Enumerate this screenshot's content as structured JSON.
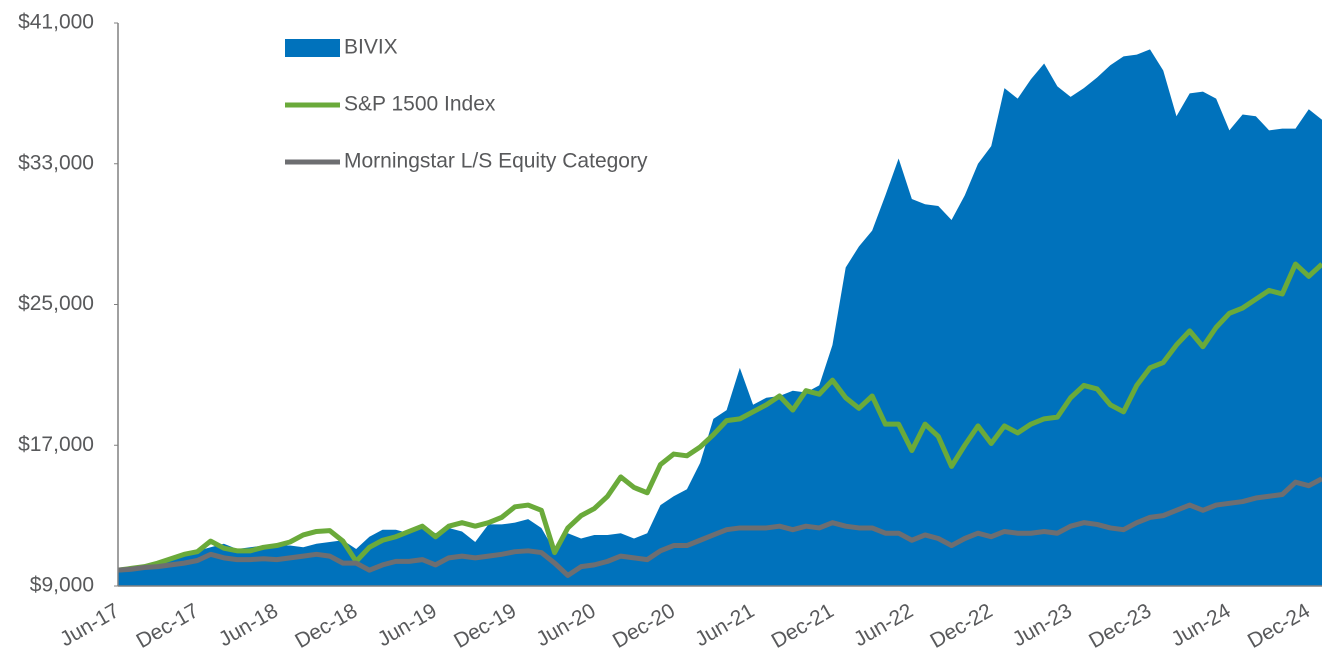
{
  "chart_data": {
    "type": "line",
    "categories": [
      "Jun-17",
      null,
      null,
      null,
      null,
      null,
      "Dec-17",
      null,
      null,
      null,
      null,
      null,
      "Jun-18",
      null,
      null,
      null,
      null,
      null,
      "Dec-18",
      null,
      null,
      null,
      null,
      null,
      "Jun-19",
      null,
      null,
      null,
      null,
      null,
      "Dec-19",
      null,
      null,
      null,
      null,
      null,
      "Jun-20",
      null,
      null,
      null,
      null,
      null,
      "Dec-20",
      null,
      null,
      null,
      null,
      null,
      "Jun-21",
      null,
      null,
      null,
      null,
      null,
      "Dec-21",
      null,
      null,
      null,
      null,
      null,
      "Jun-22",
      null,
      null,
      null,
      null,
      null,
      "Dec-22",
      null,
      null,
      null,
      null,
      null,
      "Jun-23",
      null,
      null,
      null,
      null,
      null,
      "Dec-23",
      null,
      null,
      null,
      null,
      null,
      "Jun-24",
      null,
      null,
      null,
      null,
      null,
      "Dec-24",
      null
    ],
    "series": [
      {
        "name": "BIVIX",
        "type": "area",
        "color": "#0072bc",
        "values": [
          9900,
          10100,
          10200,
          10400,
          10600,
          10800,
          11000,
          11200,
          11400,
          11100,
          11200,
          11300,
          11300,
          11300,
          11200,
          11400,
          11500,
          11600,
          11100,
          11800,
          12200,
          12200,
          12000,
          12400,
          12000,
          12300,
          12100,
          11500,
          12500,
          12500,
          12600,
          12800,
          12300,
          11000,
          12000,
          11700,
          11900,
          11900,
          12000,
          11700,
          12000,
          13600,
          14100,
          14500,
          16000,
          18500,
          19000,
          21400,
          19300,
          19700,
          19800,
          20100,
          20000,
          20400,
          22700,
          27100,
          28300,
          29200,
          31200,
          33300,
          31000,
          30700,
          30600,
          29800,
          31200,
          33000,
          34000,
          37300,
          36700,
          37800,
          38700,
          37400,
          36800,
          37300,
          37900,
          38600,
          39100,
          39200,
          39500,
          38300,
          35700,
          37000,
          37100,
          36700,
          34900,
          35800,
          35700,
          34900,
          35000,
          35000,
          36100,
          35500
        ]
      },
      {
        "name": "S&P 1500 Index",
        "type": "line",
        "color": "#6aaa3a",
        "values": [
          9900,
          10000,
          10100,
          10300,
          10550,
          10800,
          10950,
          11550,
          11150,
          11000,
          11000,
          11200,
          11300,
          11500,
          11900,
          12100,
          12150,
          11550,
          10400,
          11200,
          11600,
          11800,
          12100,
          12400,
          11800,
          12400,
          12600,
          12400,
          12600,
          12900,
          13500,
          13600,
          13300,
          10900,
          12300,
          13000,
          13400,
          14100,
          15200,
          14600,
          14300,
          15900,
          16500,
          16400,
          16900,
          17600,
          18400,
          18500,
          18900,
          19300,
          19800,
          19000,
          20100,
          19900,
          20700,
          19700,
          19100,
          19800,
          18200,
          18200,
          16700,
          18200,
          17500,
          15800,
          17000,
          18100,
          17100,
          18100,
          17700,
          18200,
          18500,
          18600,
          19700,
          20400,
          20200,
          19300,
          18900,
          20400,
          21400,
          21700,
          22700,
          23500,
          22600,
          23700,
          24500,
          24800,
          25300,
          25800,
          25600,
          27300,
          26600,
          27300
        ]
      },
      {
        "name": "Morningstar L/S Equity Category",
        "type": "line",
        "color": "#6d6e71",
        "values": [
          9900,
          9950,
          10050,
          10100,
          10200,
          10300,
          10450,
          10800,
          10600,
          10500,
          10500,
          10550,
          10500,
          10600,
          10700,
          10800,
          10700,
          10300,
          10300,
          9900,
          10200,
          10400,
          10400,
          10500,
          10200,
          10600,
          10700,
          10600,
          10700,
          10800,
          10950,
          11000,
          10900,
          10300,
          9600,
          10100,
          10200,
          10400,
          10700,
          10600,
          10500,
          11000,
          11300,
          11300,
          11600,
          11900,
          12200,
          12300,
          12300,
          12300,
          12400,
          12200,
          12400,
          12300,
          12600,
          12400,
          12300,
          12300,
          12000,
          12000,
          11600,
          11900,
          11700,
          11300,
          11700,
          12000,
          11800,
          12100,
          12000,
          12000,
          12100,
          12000,
          12400,
          12600,
          12500,
          12300,
          12200,
          12600,
          12900,
          13000,
          13300,
          13600,
          13300,
          13600,
          13700,
          13800,
          14000,
          14100,
          14200,
          14900,
          14700,
          15100
        ]
      }
    ],
    "ylim": [
      9000,
      41000
    ],
    "yticks": [
      {
        "value": 9000,
        "label": "$9,000"
      },
      {
        "value": 17000,
        "label": "$17,000"
      },
      {
        "value": 25000,
        "label": "$25,000"
      },
      {
        "value": 33000,
        "label": "$33,000"
      },
      {
        "value": 41000,
        "label": "$41,000"
      }
    ],
    "grid": false,
    "legend": "top-left"
  }
}
